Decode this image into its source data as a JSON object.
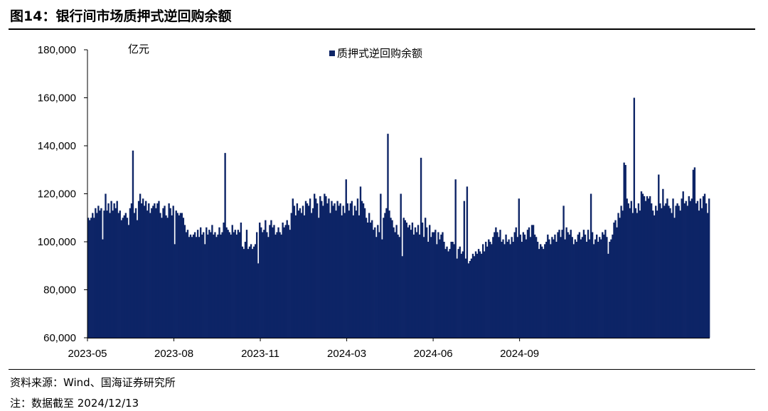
{
  "figure": {
    "title": "图14：银行间市场质押式逆回购余额",
    "source": "资料来源：Wind、国海证券研究所",
    "note": "注：数据截至 2024/12/13"
  },
  "colors": {
    "bar": "#0d2466",
    "axis": "#000000"
  },
  "chart_data": {
    "type": "bar",
    "title": "",
    "unit_label": "亿元",
    "legend": {
      "label": "质押式逆回购余额",
      "placement": "top-center"
    },
    "ylim": [
      60000,
      180000
    ],
    "y_ticks": [
      60000,
      80000,
      100000,
      120000,
      140000,
      160000,
      180000
    ],
    "y_tick_labels": [
      "60,000",
      "80,000",
      "100,000",
      "120,000",
      "140,000",
      "160,000",
      "180,000"
    ],
    "x_tick_labels": [
      "2023-05",
      "2023-08",
      "2023-11",
      "2024-03",
      "2024-06",
      "2024-09"
    ],
    "x_tick_index": [
      0,
      60,
      120,
      180,
      240,
      300
    ],
    "grid": false,
    "series": [
      {
        "name": "质押式逆回购余额",
        "values": [
          110000,
          109000,
          110000,
          112000,
          110000,
          114000,
          112000,
          115000,
          113000,
          114000,
          101000,
          113000,
          120000,
          113000,
          116000,
          112000,
          117000,
          113000,
          116000,
          114000,
          117000,
          112000,
          113000,
          109000,
          110000,
          111000,
          112000,
          110000,
          107000,
          114000,
          116000,
          138000,
          112000,
          114000,
          109000,
          117000,
          120000,
          116000,
          118000,
          115000,
          117000,
          113000,
          116000,
          112000,
          114000,
          115000,
          116000,
          114000,
          116000,
          117000,
          112000,
          110000,
          114000,
          115000,
          111000,
          110000,
          116000,
          114000,
          111000,
          115000,
          99000,
          113000,
          112000,
          111000,
          112000,
          112000,
          110000,
          107000,
          104000,
          105000,
          102000,
          103000,
          102000,
          103000,
          104000,
          102000,
          105000,
          102000,
          106000,
          103000,
          104000,
          99000,
          106000,
          103000,
          105000,
          104000,
          107000,
          103000,
          104000,
          102000,
          103000,
          106000,
          103000,
          104000,
          108000,
          137000,
          106000,
          105000,
          104000,
          103000,
          107000,
          104000,
          105000,
          103000,
          105000,
          104000,
          108000,
          98000,
          97000,
          100000,
          105000,
          97000,
          98000,
          99000,
          97000,
          98000,
          99000,
          104000,
          91000,
          108000,
          106000,
          104000,
          105000,
          109000,
          104000,
          102000,
          107000,
          109000,
          106000,
          107000,
          103000,
          104000,
          106000,
          104000,
          103000,
          108000,
          106000,
          107000,
          109000,
          107000,
          105000,
          112000,
          118000,
          115000,
          111000,
          116000,
          113000,
          114000,
          112000,
          115000,
          111000,
          117000,
          116000,
          115000,
          118000,
          112000,
          114000,
          120000,
          118000,
          116000,
          110000,
          119000,
          117000,
          115000,
          120000,
          119000,
          116000,
          118000,
          112000,
          117000,
          115000,
          116000,
          113000,
          117000,
          115000,
          116000,
          111000,
          115000,
          112000,
          126000,
          116000,
          113000,
          116000,
          117000,
          111000,
          115000,
          113000,
          118000,
          111000,
          123000,
          117000,
          116000,
          114000,
          110000,
          108000,
          112000,
          108000,
          109000,
          105000,
          106000,
          102000,
          107000,
          104000,
          120000,
          101000,
          110000,
          112000,
          114000,
          145000,
          113000,
          110000,
          109000,
          106000,
          104000,
          107000,
          103000,
          102000,
          120000,
          94000,
          110000,
          109000,
          108000,
          106000,
          107000,
          105000,
          108000,
          103000,
          106000,
          104000,
          107000,
          103000,
          135000,
          108000,
          102000,
          110000,
          106000,
          100000,
          107000,
          102000,
          104000,
          104000,
          105000,
          99000,
          104000,
          101000,
          103000,
          104000,
          100000,
          97000,
          98000,
          96000,
          97000,
          100000,
          100000,
          99000,
          126000,
          93000,
          97000,
          98000,
          95000,
          96000,
          117000,
          93000,
          123000,
          91000,
          92000,
          93000,
          95000,
          94000,
          96000,
          95000,
          97000,
          96000,
          95000,
          99000,
          96000,
          100000,
          98000,
          101000,
          100000,
          99000,
          102000,
          104000,
          106000,
          104000,
          102000,
          105000,
          100000,
          101000,
          99000,
          103000,
          100000,
          101000,
          99000,
          102000,
          100000,
          104000,
          106000,
          102000,
          118000,
          103000,
          100000,
          104000,
          103000,
          101000,
          105000,
          106000,
          102000,
          107000,
          107000,
          103000,
          102000,
          100000,
          97000,
          99000,
          98000,
          97000,
          99000,
          100000,
          103000,
          101000,
          99000,
          102000,
          101000,
          103000,
          100000,
          104000,
          105000,
          102000,
          105000,
          115000,
          101000,
          106000,
          104000,
          103000,
          105000,
          102000,
          99000,
          101000,
          100000,
          103000,
          104000,
          101000,
          102000,
          105000,
          103000,
          100000,
          105000,
          101000,
          120000,
          104000,
          99000,
          101000,
          103000,
          100000,
          102000,
          101000,
          104000,
          103000,
          105000,
          102000,
          95000,
          100000,
          101000,
          103000,
          108000,
          109000,
          106000,
          112000,
          110000,
          115000,
          113000,
          133000,
          132000,
          118000,
          116000,
          114000,
          117000,
          112000,
          160000,
          114000,
          112000,
          116000,
          113000,
          121000,
          120000,
          119000,
          117000,
          119000,
          118000,
          119000,
          116000,
          113000,
          111000,
          115000,
          113000,
          128000,
          116000,
          114000,
          122000,
          115000,
          116000,
          118000,
          115000,
          114000,
          112000,
          118000,
          110000,
          115000,
          116000,
          115000,
          113000,
          118000,
          121000,
          116000,
          117000,
          115000,
          119000,
          117000,
          118000,
          130000,
          131000,
          116000,
          117000,
          113000,
          118000,
          114000,
          119000,
          120000,
          116000,
          112000,
          118000
        ]
      }
    ]
  }
}
